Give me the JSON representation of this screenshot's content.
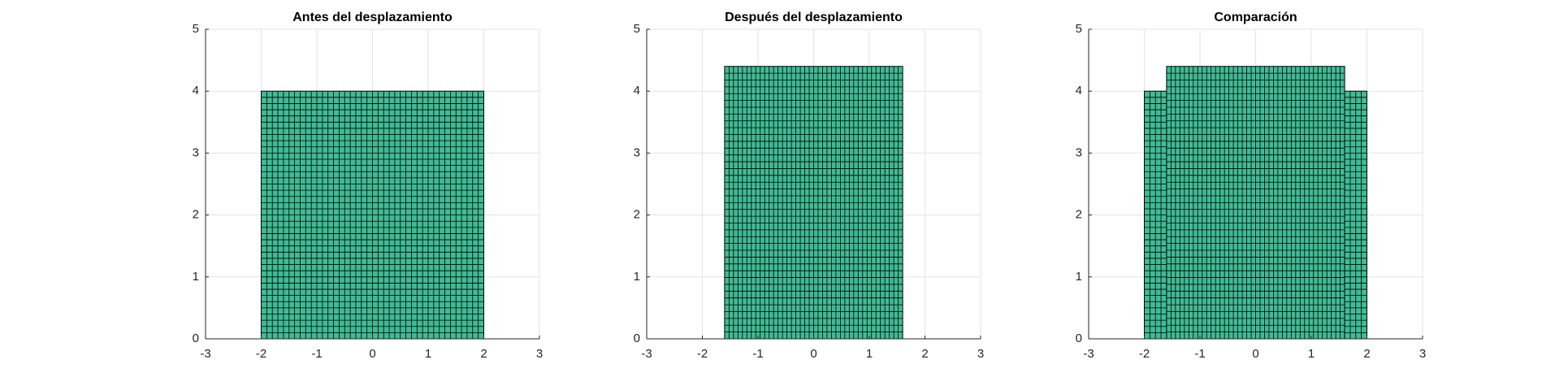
{
  "chart_data": [
    {
      "type": "mesh",
      "title": "Antes del desplazamiento",
      "xlim": [
        -3,
        3
      ],
      "ylim": [
        0,
        5
      ],
      "xticks": [
        -3,
        -2,
        -1,
        0,
        1,
        2,
        3
      ],
      "yticks": [
        0,
        1,
        2,
        3,
        4,
        5
      ],
      "grid": true,
      "series": [
        {
          "color": "#3fbc93",
          "x": [
            -2,
            2
          ],
          "y": [
            0,
            4
          ],
          "nx": 40,
          "ny": 40
        }
      ]
    },
    {
      "type": "mesh",
      "title": "Después del desplazamiento",
      "xlim": [
        -3,
        3
      ],
      "ylim": [
        0,
        5
      ],
      "xticks": [
        -3,
        -2,
        -1,
        0,
        1,
        2,
        3
      ],
      "yticks": [
        0,
        1,
        2,
        3,
        4,
        5
      ],
      "grid": true,
      "series": [
        {
          "color": "#3fbc93",
          "x": [
            -1.6,
            1.6
          ],
          "y": [
            0,
            4.4
          ],
          "nx": 40,
          "ny": 40
        }
      ]
    },
    {
      "type": "mesh",
      "title": "Comparación",
      "xlim": [
        -3,
        3
      ],
      "ylim": [
        0,
        5
      ],
      "xticks": [
        -3,
        -2,
        -1,
        0,
        1,
        2,
        3
      ],
      "yticks": [
        0,
        1,
        2,
        3,
        4,
        5
      ],
      "grid": true,
      "series": [
        {
          "color": "#3fbc93",
          "x": [
            -2,
            2
          ],
          "y": [
            0,
            4
          ],
          "nx": 40,
          "ny": 40
        },
        {
          "color": "#3fbc93",
          "x": [
            -1.6,
            1.6
          ],
          "y": [
            0,
            4.4
          ],
          "nx": 40,
          "ny": 40
        }
      ]
    }
  ]
}
